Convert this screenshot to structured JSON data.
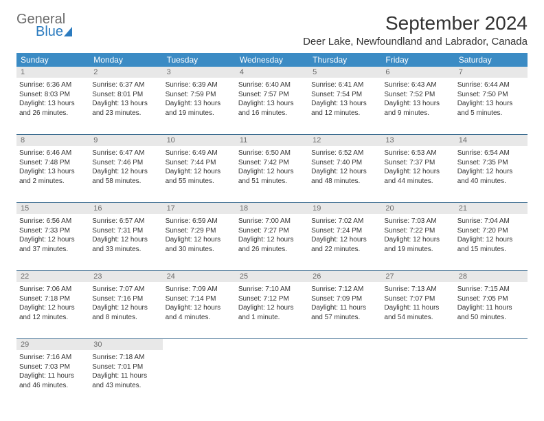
{
  "logo": {
    "text1": "General",
    "text2": "Blue"
  },
  "title": "September 2024",
  "location": "Deer Lake, Newfoundland and Labrador, Canada",
  "colors": {
    "header_bg": "#3b8bc4",
    "header_text": "#ffffff",
    "daynum_bg": "#e8e8e8",
    "daynum_text": "#6b6b6b",
    "row_border": "#3b6b8f",
    "body_text": "#333333",
    "logo_gray": "#6b6b6b",
    "logo_blue": "#2b7bbf"
  },
  "day_names": [
    "Sunday",
    "Monday",
    "Tuesday",
    "Wednesday",
    "Thursday",
    "Friday",
    "Saturday"
  ],
  "weeks": [
    [
      {
        "n": "1",
        "sr": "Sunrise: 6:36 AM",
        "ss": "Sunset: 8:03 PM",
        "d1": "Daylight: 13 hours",
        "d2": "and 26 minutes."
      },
      {
        "n": "2",
        "sr": "Sunrise: 6:37 AM",
        "ss": "Sunset: 8:01 PM",
        "d1": "Daylight: 13 hours",
        "d2": "and 23 minutes."
      },
      {
        "n": "3",
        "sr": "Sunrise: 6:39 AM",
        "ss": "Sunset: 7:59 PM",
        "d1": "Daylight: 13 hours",
        "d2": "and 19 minutes."
      },
      {
        "n": "4",
        "sr": "Sunrise: 6:40 AM",
        "ss": "Sunset: 7:57 PM",
        "d1": "Daylight: 13 hours",
        "d2": "and 16 minutes."
      },
      {
        "n": "5",
        "sr": "Sunrise: 6:41 AM",
        "ss": "Sunset: 7:54 PM",
        "d1": "Daylight: 13 hours",
        "d2": "and 12 minutes."
      },
      {
        "n": "6",
        "sr": "Sunrise: 6:43 AM",
        "ss": "Sunset: 7:52 PM",
        "d1": "Daylight: 13 hours",
        "d2": "and 9 minutes."
      },
      {
        "n": "7",
        "sr": "Sunrise: 6:44 AM",
        "ss": "Sunset: 7:50 PM",
        "d1": "Daylight: 13 hours",
        "d2": "and 5 minutes."
      }
    ],
    [
      {
        "n": "8",
        "sr": "Sunrise: 6:46 AM",
        "ss": "Sunset: 7:48 PM",
        "d1": "Daylight: 13 hours",
        "d2": "and 2 minutes."
      },
      {
        "n": "9",
        "sr": "Sunrise: 6:47 AM",
        "ss": "Sunset: 7:46 PM",
        "d1": "Daylight: 12 hours",
        "d2": "and 58 minutes."
      },
      {
        "n": "10",
        "sr": "Sunrise: 6:49 AM",
        "ss": "Sunset: 7:44 PM",
        "d1": "Daylight: 12 hours",
        "d2": "and 55 minutes."
      },
      {
        "n": "11",
        "sr": "Sunrise: 6:50 AM",
        "ss": "Sunset: 7:42 PM",
        "d1": "Daylight: 12 hours",
        "d2": "and 51 minutes."
      },
      {
        "n": "12",
        "sr": "Sunrise: 6:52 AM",
        "ss": "Sunset: 7:40 PM",
        "d1": "Daylight: 12 hours",
        "d2": "and 48 minutes."
      },
      {
        "n": "13",
        "sr": "Sunrise: 6:53 AM",
        "ss": "Sunset: 7:37 PM",
        "d1": "Daylight: 12 hours",
        "d2": "and 44 minutes."
      },
      {
        "n": "14",
        "sr": "Sunrise: 6:54 AM",
        "ss": "Sunset: 7:35 PM",
        "d1": "Daylight: 12 hours",
        "d2": "and 40 minutes."
      }
    ],
    [
      {
        "n": "15",
        "sr": "Sunrise: 6:56 AM",
        "ss": "Sunset: 7:33 PM",
        "d1": "Daylight: 12 hours",
        "d2": "and 37 minutes."
      },
      {
        "n": "16",
        "sr": "Sunrise: 6:57 AM",
        "ss": "Sunset: 7:31 PM",
        "d1": "Daylight: 12 hours",
        "d2": "and 33 minutes."
      },
      {
        "n": "17",
        "sr": "Sunrise: 6:59 AM",
        "ss": "Sunset: 7:29 PM",
        "d1": "Daylight: 12 hours",
        "d2": "and 30 minutes."
      },
      {
        "n": "18",
        "sr": "Sunrise: 7:00 AM",
        "ss": "Sunset: 7:27 PM",
        "d1": "Daylight: 12 hours",
        "d2": "and 26 minutes."
      },
      {
        "n": "19",
        "sr": "Sunrise: 7:02 AM",
        "ss": "Sunset: 7:24 PM",
        "d1": "Daylight: 12 hours",
        "d2": "and 22 minutes."
      },
      {
        "n": "20",
        "sr": "Sunrise: 7:03 AM",
        "ss": "Sunset: 7:22 PM",
        "d1": "Daylight: 12 hours",
        "d2": "and 19 minutes."
      },
      {
        "n": "21",
        "sr": "Sunrise: 7:04 AM",
        "ss": "Sunset: 7:20 PM",
        "d1": "Daylight: 12 hours",
        "d2": "and 15 minutes."
      }
    ],
    [
      {
        "n": "22",
        "sr": "Sunrise: 7:06 AM",
        "ss": "Sunset: 7:18 PM",
        "d1": "Daylight: 12 hours",
        "d2": "and 12 minutes."
      },
      {
        "n": "23",
        "sr": "Sunrise: 7:07 AM",
        "ss": "Sunset: 7:16 PM",
        "d1": "Daylight: 12 hours",
        "d2": "and 8 minutes."
      },
      {
        "n": "24",
        "sr": "Sunrise: 7:09 AM",
        "ss": "Sunset: 7:14 PM",
        "d1": "Daylight: 12 hours",
        "d2": "and 4 minutes."
      },
      {
        "n": "25",
        "sr": "Sunrise: 7:10 AM",
        "ss": "Sunset: 7:12 PM",
        "d1": "Daylight: 12 hours",
        "d2": "and 1 minute."
      },
      {
        "n": "26",
        "sr": "Sunrise: 7:12 AM",
        "ss": "Sunset: 7:09 PM",
        "d1": "Daylight: 11 hours",
        "d2": "and 57 minutes."
      },
      {
        "n": "27",
        "sr": "Sunrise: 7:13 AM",
        "ss": "Sunset: 7:07 PM",
        "d1": "Daylight: 11 hours",
        "d2": "and 54 minutes."
      },
      {
        "n": "28",
        "sr": "Sunrise: 7:15 AM",
        "ss": "Sunset: 7:05 PM",
        "d1": "Daylight: 11 hours",
        "d2": "and 50 minutes."
      }
    ],
    [
      {
        "n": "29",
        "sr": "Sunrise: 7:16 AM",
        "ss": "Sunset: 7:03 PM",
        "d1": "Daylight: 11 hours",
        "d2": "and 46 minutes."
      },
      {
        "n": "30",
        "sr": "Sunrise: 7:18 AM",
        "ss": "Sunset: 7:01 PM",
        "d1": "Daylight: 11 hours",
        "d2": "and 43 minutes."
      },
      null,
      null,
      null,
      null,
      null
    ]
  ]
}
